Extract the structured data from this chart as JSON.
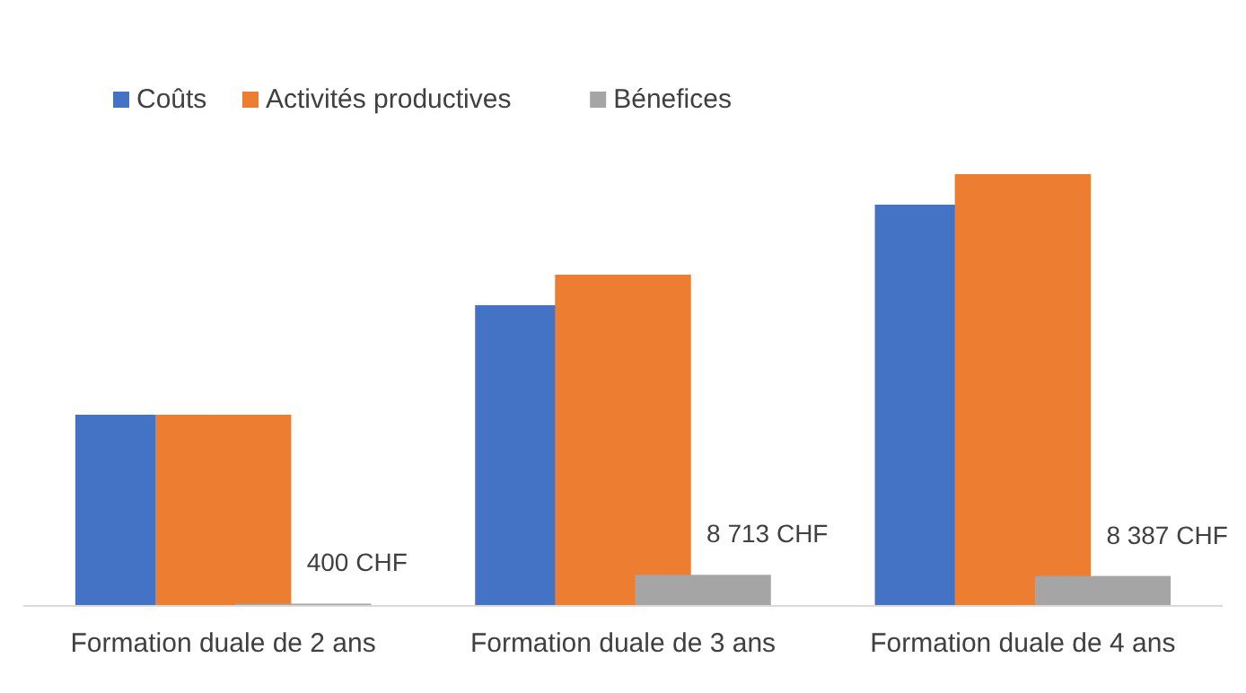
{
  "chart_data": {
    "type": "bar",
    "categories": [
      "Formation duale de 2 ans",
      "Formation duale de 3 ans",
      "Formation duale de 4 ans"
    ],
    "series": [
      {
        "name": "Coûts",
        "color": "#4472c4",
        "values": [
          54900,
          86500,
          115500
        ]
      },
      {
        "name": "Activités productives",
        "color": "#ed7d31",
        "values": [
          54900,
          95300,
          124300
        ]
      },
      {
        "name": "Bénefices",
        "color": "#a5a5a5",
        "values": [
          400,
          8713,
          8387
        ],
        "value_labels": [
          "400 CHF",
          "8 713 CHF",
          "8 387 CHF"
        ]
      }
    ],
    "tick_labels": "x",
    "legend": "top left"
  }
}
